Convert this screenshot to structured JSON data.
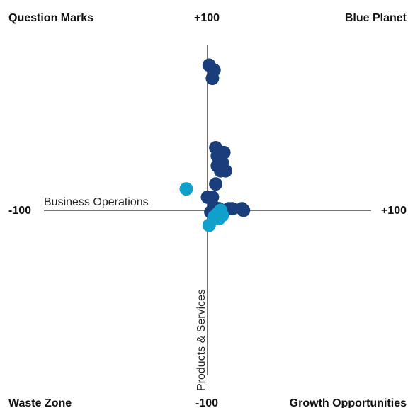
{
  "chart_data": {
    "type": "scatter",
    "quadrants": {
      "top_left": "Question Marks",
      "top_right": "Blue Planet",
      "bottom_left": "Waste Zone",
      "bottom_right": "Growth Opportunities"
    },
    "xlabel": "Business Operations",
    "ylabel": "Products & Services",
    "xlim": [
      -100,
      100
    ],
    "ylim": [
      -100,
      100
    ],
    "x_tick_labels": {
      "min": "-100",
      "max": "+100"
    },
    "y_tick_labels": {
      "min": "-100",
      "max": "+100"
    },
    "grid": false,
    "colors": {
      "series_dark": "#1a3d7c",
      "series_light": "#0fa0cb",
      "axis": "#222222"
    },
    "series": [
      {
        "color_key": "series_dark",
        "points": [
          {
            "x": 1,
            "y": 88
          },
          {
            "x": 4,
            "y": 85
          },
          {
            "x": 3,
            "y": 80
          },
          {
            "x": 5,
            "y": 38
          },
          {
            "x": 10,
            "y": 35
          },
          {
            "x": 6,
            "y": 33
          },
          {
            "x": 8,
            "y": 31
          },
          {
            "x": 9,
            "y": 29
          },
          {
            "x": 6,
            "y": 27
          },
          {
            "x": 11,
            "y": 24
          },
          {
            "x": 8,
            "y": 24
          },
          {
            "x": 5,
            "y": 16
          },
          {
            "x": 0,
            "y": 8
          },
          {
            "x": 3,
            "y": 8
          },
          {
            "x": 4,
            "y": 2
          },
          {
            "x": 7,
            "y": 1
          },
          {
            "x": 13,
            "y": 1
          },
          {
            "x": 15,
            "y": 1
          },
          {
            "x": 21,
            "y": 1
          },
          {
            "x": 22,
            "y": 0
          },
          {
            "x": 2,
            "y": -1
          }
        ]
      },
      {
        "color_key": "series_light",
        "points": [
          {
            "x": -13,
            "y": 13
          },
          {
            "x": 8,
            "y": 0
          },
          {
            "x": 6,
            "y": -2
          },
          {
            "x": 9,
            "y": -3
          },
          {
            "x": 4,
            "y": -4
          },
          {
            "x": 7,
            "y": -5
          },
          {
            "x": 1,
            "y": -9
          }
        ]
      }
    ]
  }
}
